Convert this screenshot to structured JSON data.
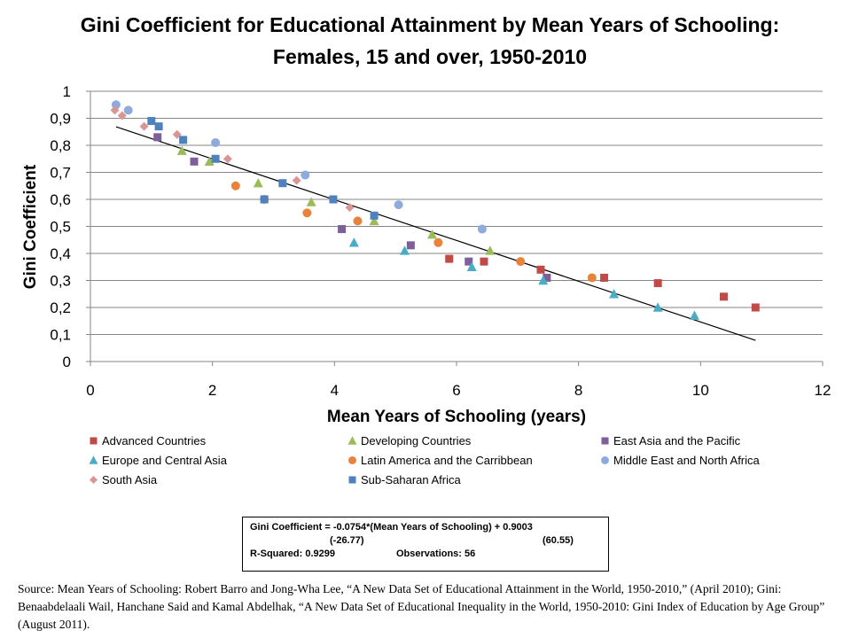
{
  "title": "Gini Coefficient for Educational Attainment by Mean Years of Schooling: Females, 15 and over, 1950-2010",
  "chart_data": {
    "type": "scatter",
    "title": "Gini Coefficient for Educational Attainment by Mean Years of Schooling: Females, 15 and over, 1950-2010",
    "xlabel": "Mean Years of Schooling (years)",
    "ylabel": "Gini Coefficient",
    "xlim": [
      0,
      12
    ],
    "ylim": [
      0,
      1
    ],
    "x_ticks": [
      "0",
      "2",
      "4",
      "6",
      "8",
      "10",
      "12"
    ],
    "y_ticks": [
      "0",
      "0,1",
      "0,2",
      "0,3",
      "0,4",
      "0,5",
      "0,6",
      "0,7",
      "0,8",
      "0,9",
      "1"
    ],
    "grid": "horizontal",
    "legend_position": "bottom",
    "series": [
      {
        "name": "Advanced Countries",
        "marker": "square",
        "color": "#BE4B48",
        "points": [
          [
            5.88,
            0.38
          ],
          [
            6.45,
            0.37
          ],
          [
            7.38,
            0.34
          ],
          [
            8.42,
            0.31
          ],
          [
            9.3,
            0.29
          ],
          [
            10.38,
            0.24
          ],
          [
            10.9,
            0.2
          ]
        ]
      },
      {
        "name": "Developing Countries",
        "marker": "triangle",
        "color": "#9BBB59",
        "points": [
          [
            1.5,
            0.78
          ],
          [
            1.95,
            0.74
          ],
          [
            2.75,
            0.66
          ],
          [
            3.62,
            0.59
          ],
          [
            4.65,
            0.52
          ],
          [
            5.6,
            0.47
          ],
          [
            6.55,
            0.41
          ]
        ]
      },
      {
        "name": "East Asia and the Pacific",
        "marker": "square",
        "color": "#7E5E9B",
        "points": [
          [
            1.1,
            0.83
          ],
          [
            1.7,
            0.74
          ],
          [
            4.12,
            0.49
          ],
          [
            5.25,
            0.43
          ],
          [
            6.2,
            0.37
          ],
          [
            7.48,
            0.31
          ]
        ]
      },
      {
        "name": "Europe and Central Asia",
        "marker": "triangle",
        "color": "#4BACC6",
        "points": [
          [
            4.32,
            0.44
          ],
          [
            5.15,
            0.41
          ],
          [
            6.25,
            0.35
          ],
          [
            7.42,
            0.3
          ],
          [
            8.58,
            0.25
          ],
          [
            9.3,
            0.2
          ],
          [
            9.9,
            0.17
          ]
        ]
      },
      {
        "name": "Latin America and the Carribbean",
        "marker": "circle",
        "color": "#E8833A",
        "points": [
          [
            2.38,
            0.65
          ],
          [
            2.85,
            0.6
          ],
          [
            3.55,
            0.55
          ],
          [
            4.38,
            0.52
          ],
          [
            5.7,
            0.44
          ],
          [
            7.05,
            0.37
          ],
          [
            8.22,
            0.31
          ]
        ]
      },
      {
        "name": "Middle East and North Africa",
        "marker": "circle",
        "color": "#8FAADC",
        "points": [
          [
            0.42,
            0.95
          ],
          [
            0.62,
            0.93
          ],
          [
            2.05,
            0.81
          ],
          [
            3.52,
            0.69
          ],
          [
            5.05,
            0.58
          ],
          [
            6.42,
            0.49
          ]
        ]
      },
      {
        "name": "South Asia",
        "marker": "diamond",
        "color": "#D99694",
        "points": [
          [
            0.4,
            0.93
          ],
          [
            0.52,
            0.91
          ],
          [
            0.88,
            0.87
          ],
          [
            1.42,
            0.84
          ],
          [
            2.25,
            0.75
          ],
          [
            3.38,
            0.67
          ],
          [
            4.25,
            0.57
          ]
        ]
      },
      {
        "name": "Sub-Saharan Africa",
        "marker": "square",
        "color": "#4F81BD",
        "points": [
          [
            1.0,
            0.89
          ],
          [
            1.12,
            0.87
          ],
          [
            1.52,
            0.82
          ],
          [
            2.05,
            0.75
          ],
          [
            2.85,
            0.6
          ],
          [
            3.15,
            0.66
          ],
          [
            3.98,
            0.6
          ],
          [
            4.65,
            0.54
          ]
        ]
      }
    ],
    "trendline": {
      "slope": -0.0754,
      "intercept": 0.9003,
      "x_range": [
        0.42,
        10.9
      ]
    }
  },
  "legend_items": [
    "Advanced Countries",
    "Developing Countries",
    "East Asia and the Pacific",
    "Europe and Central Asia",
    "Latin America and the Carribbean",
    "Middle East and North Africa",
    "South Asia",
    "Sub-Saharan Africa"
  ],
  "equation_box": {
    "line1": "Gini Coefficient = -0.0754*(Mean Years of Schooling) + 0.9003",
    "line2_left": "(-26.77)",
    "line2_right": "(60.55)",
    "line3_left": "R-Squared: 0.9299",
    "line3_right": "Observations: 56"
  },
  "source_text": "Source: Mean Years of Schooling: Robert Barro and Jong-Wha Lee, “A New Data Set of Educational Attainment in the World, 1950-2010,” (April 2010); Gini: Benaabdelaali Wail, Hanchane Said and Kamal Abdelhak, “A New Data Set of Educational Inequality in the World, 1950-2010: Gini Index of Education by Age Group” (August 2011)."
}
